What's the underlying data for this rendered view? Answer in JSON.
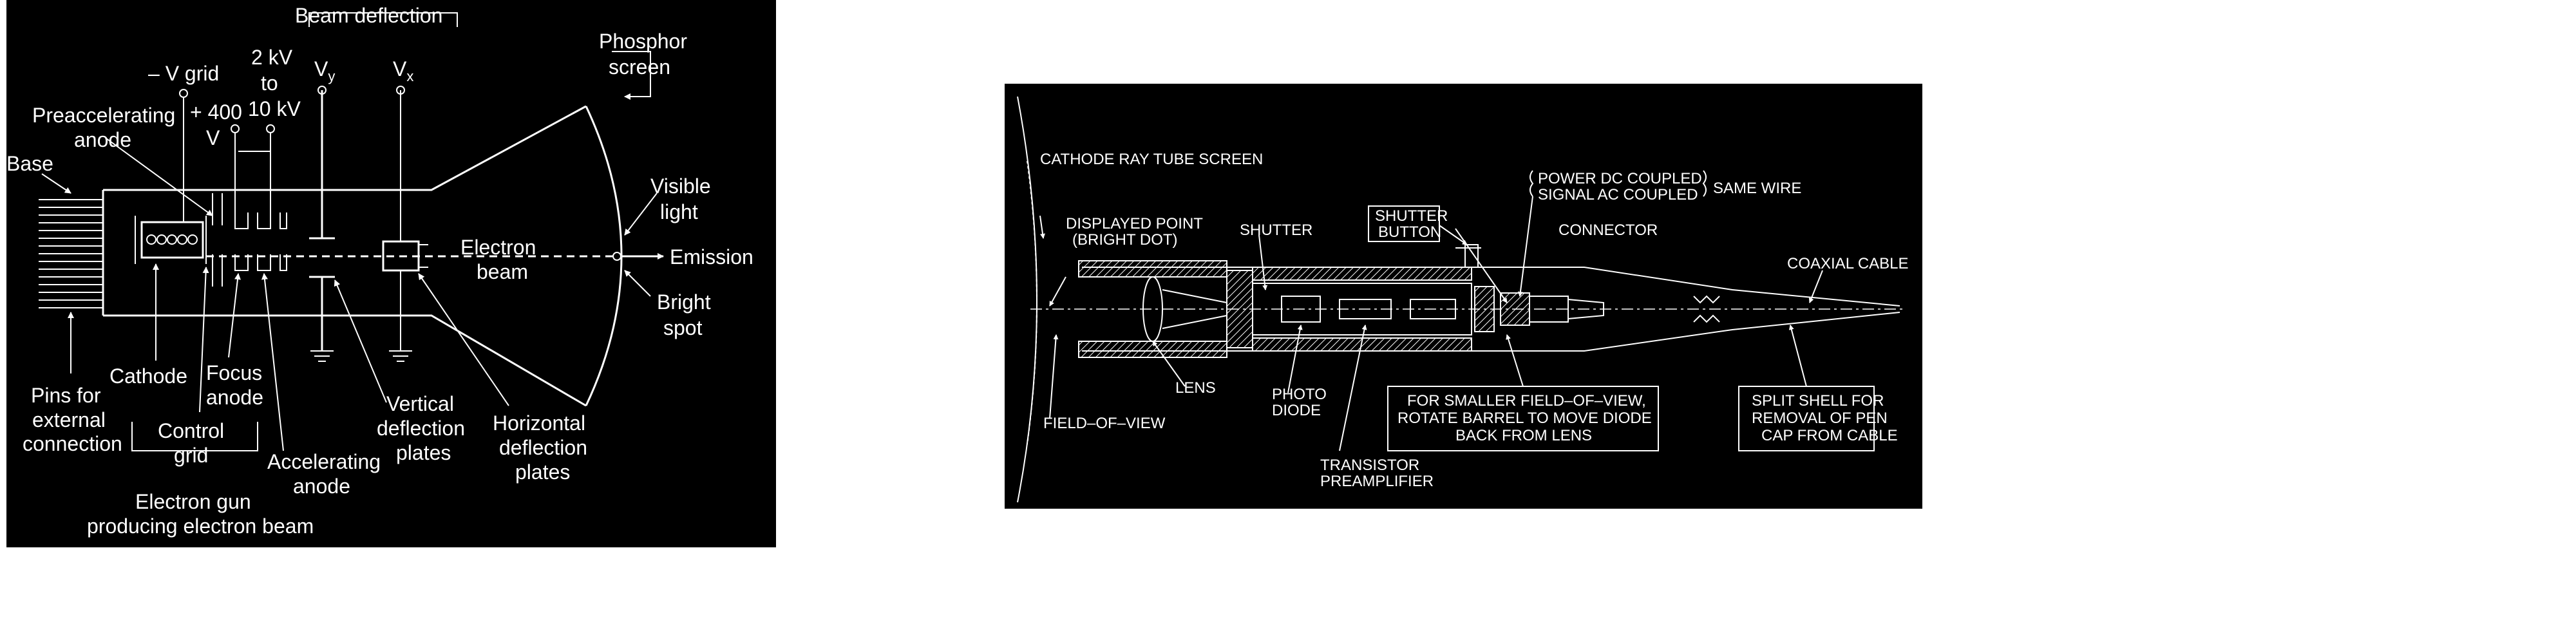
{
  "crt": {
    "labels": {
      "beam_deflection": "Beam deflection",
      "phosphor_1": "Phosphor",
      "phosphor_2": "screen",
      "neg_v_grid": "– V grid",
      "kv_1": "2 kV",
      "kv_2": "to",
      "kv_3": "10 kV",
      "vy": "V",
      "vy_sub": "y",
      "vx": "V",
      "vx_sub": "x",
      "preaccel_1": "Preaccelerating",
      "preaccel_2": "anode",
      "plus400": "+ 400",
      "v": "V",
      "base": "Base",
      "visible_1": "Visible",
      "visible_2": "light",
      "electron_1": "Electron",
      "electron_2": "beam",
      "emission": "Emission",
      "bright_1": "Bright",
      "bright_2": "spot",
      "pins_1": "Pins for",
      "pins_2": "external",
      "pins_3": "connection",
      "cathode": "Cathode",
      "focus_1": "Focus",
      "focus_2": "anode",
      "control_1": "Control",
      "control_2": "grid",
      "accel_1": "Accelerating",
      "accel_2": "anode",
      "vert_1": "Vertical",
      "vert_2": "deflection",
      "vert_3": "plates",
      "horiz_1": "Horizontal",
      "horiz_2": "deflection",
      "horiz_3": "plates",
      "gun_1": "Electron gun",
      "gun_2": "producing electron beam"
    }
  },
  "pen": {
    "labels": {
      "crt_screen": "CATHODE RAY TUBE SCREEN",
      "power_dc": "POWER DC COUPLED",
      "signal_ac": "SIGNAL AC COUPLED",
      "same_wire": "SAME WIRE",
      "displayed_1": "DISPLAYED POINT",
      "displayed_2": "(BRIGHT DOT)",
      "shutter": "SHUTTER",
      "shutter_btn_1": "SHUTTER",
      "shutter_btn_2": "BUTTON",
      "connector": "CONNECTOR",
      "coaxial": "COAXIAL CABLE",
      "lens": "LENS",
      "photo_1": "PHOTO",
      "photo_2": "DIODE",
      "fov_1": "FOR SMALLER FIELD–OF–VIEW,",
      "fov_2": "ROTATE BARREL TO MOVE DIODE",
      "fov_3": "BACK FROM LENS",
      "split_1": "SPLIT SHELL FOR",
      "split_2": "REMOVAL OF PEN",
      "split_3": "CAP FROM CABLE",
      "field_of_view": "FIELD–OF–VIEW",
      "transistor_1": "TRANSISTOR",
      "transistor_2": "PREAMPLIFIER"
    }
  }
}
